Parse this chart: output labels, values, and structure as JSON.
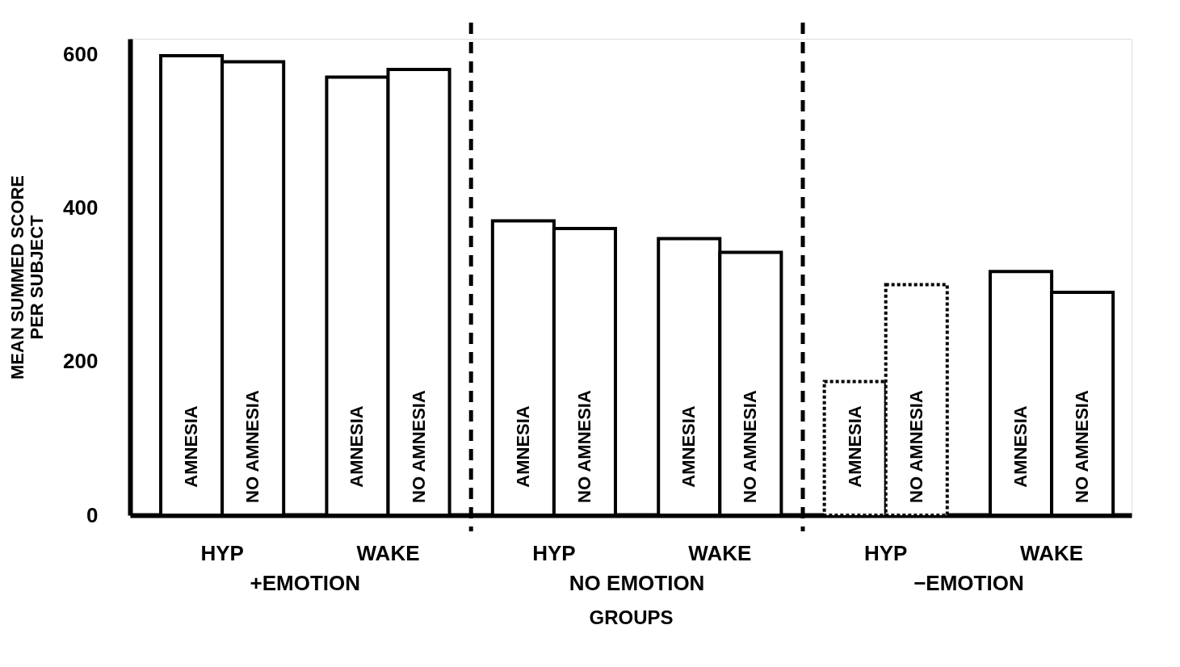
{
  "chart_data": {
    "type": "bar",
    "ylabel": "MEAN SUMMED SCORE\nPER SUBJECT",
    "xlabel": "GROUPS",
    "categories": [
      "AMNESIA",
      "NO AMNESIA",
      "AMNESIA",
      "NO AMNESIA",
      "AMNESIA",
      "NO AMNESIA",
      "AMNESIA",
      "NO AMNESIA",
      "AMNESIA",
      "NO AMNESIA",
      "AMNESIA",
      "NO AMNESIA"
    ],
    "series": [
      {
        "color": "#ffffff",
        "line_style": "solid",
        "values": [
          598,
          590,
          570,
          580,
          383,
          373,
          360,
          342,
          null,
          null,
          317,
          290
        ]
      },
      {
        "color": "#ffffff",
        "line_style": "dotted",
        "values": [
          null,
          null,
          null,
          null,
          null,
          null,
          null,
          null,
          174,
          300,
          null,
          null
        ]
      }
    ],
    "ylim": [
      0,
      620
    ],
    "yticks": [
      0,
      200,
      400,
      600
    ],
    "grid": false,
    "tick_labels": "y",
    "annotations": [
      "HYP",
      "WAKE",
      "+EMOTION",
      "HYP",
      "WAKE",
      "NO EMOTION",
      "HYP",
      "WAKE",
      "−EMOTION"
    ]
  }
}
